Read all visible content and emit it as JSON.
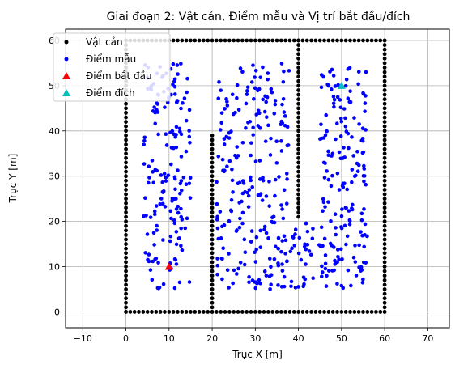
{
  "chart_data": {
    "type": "scatter",
    "title": "Giai đoạn 2: Vật cản, Điểm mẫu và Vị trí bắt đầu/đích",
    "xlabel": "Trục X [m]",
    "ylabel": "Trục Y [m]",
    "xlim": [
      -14,
      75
    ],
    "ylim": [
      -3.5,
      62.5
    ],
    "xticks": [
      -10,
      0,
      10,
      20,
      30,
      40,
      50,
      60,
      70
    ],
    "yticks": [
      0,
      10,
      20,
      30,
      40,
      50,
      60
    ],
    "grid": true,
    "legend_position": "top-left",
    "obstacle_segments": [
      {
        "x0": 0,
        "y0": 0,
        "x1": 60,
        "y1": 0
      },
      {
        "x0": 0,
        "y0": 60,
        "x1": 60,
        "y1": 60
      },
      {
        "x0": 0,
        "y0": 0,
        "x1": 0,
        "y1": 60
      },
      {
        "x0": 60,
        "y0": 0,
        "x1": 60,
        "y1": 60
      },
      {
        "x0": 20,
        "y0": 0,
        "x1": 20,
        "y1": 39
      },
      {
        "x0": 40,
        "y0": 21,
        "x1": 40,
        "y1": 60
      }
    ],
    "sample_regions": [
      {
        "x": [
          4,
          15
        ],
        "y": [
          5,
          55
        ],
        "count": 170
      },
      {
        "x": [
          21,
          38
        ],
        "y": [
          5,
          55
        ],
        "count": 230
      },
      {
        "x": [
          38,
          56
        ],
        "y": [
          5,
          20
        ],
        "count": 90
      },
      {
        "x": [
          45,
          56
        ],
        "y": [
          20,
          55
        ],
        "count": 120
      }
    ],
    "series": [
      {
        "name": "Vật cản",
        "color": "#000000",
        "marker": "circle"
      },
      {
        "name": "Điểm mẫu",
        "color": "#0000ff",
        "marker": "circle"
      },
      {
        "name": "Điểm bắt đầu",
        "color": "#ff0000",
        "marker": "triangle",
        "x": 10,
        "y": 10
      },
      {
        "name": "Điểm đích",
        "color": "#00bfbf",
        "marker": "triangle",
        "x": 50,
        "y": 50
      }
    ]
  }
}
